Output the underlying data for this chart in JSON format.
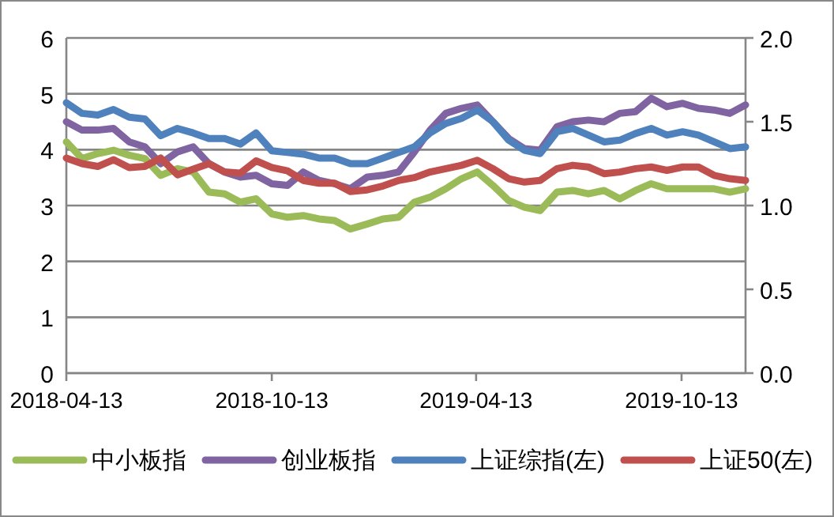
{
  "chart_data": {
    "type": "line",
    "x": [
      "2018-04-13",
      "2018-04-27",
      "2018-05-11",
      "2018-05-25",
      "2018-06-08",
      "2018-06-22",
      "2018-07-06",
      "2018-07-21",
      "2018-08-04",
      "2018-08-18",
      "2018-09-01",
      "2018-09-15",
      "2018-09-29",
      "2018-10-13",
      "2018-10-27",
      "2018-11-10",
      "2018-11-24",
      "2018-12-08",
      "2018-12-22",
      "2019-01-06",
      "2019-01-20",
      "2019-02-03",
      "2019-02-17",
      "2019-03-03",
      "2019-03-17",
      "2019-03-31",
      "2019-04-14",
      "2019-04-28",
      "2019-05-12",
      "2019-05-26",
      "2019-06-09",
      "2019-06-24",
      "2019-07-08",
      "2019-07-22",
      "2019-08-05",
      "2019-08-19",
      "2019-09-02",
      "2019-09-16",
      "2019-09-30",
      "2019-10-14",
      "2019-10-28",
      "2019-11-11",
      "2019-11-25",
      "2019-12-09"
    ],
    "series": [
      {
        "name": "中小板指",
        "color": "#9bbb59",
        "axis": "y2",
        "values": [
          1.38,
          1.28,
          1.31,
          1.33,
          1.3,
          1.28,
          1.18,
          1.22,
          1.2,
          1.08,
          1.07,
          1.02,
          1.04,
          0.95,
          0.93,
          0.94,
          0.92,
          0.91,
          0.86,
          0.89,
          0.92,
          0.93,
          1.02,
          1.05,
          1.1,
          1.16,
          1.2,
          1.12,
          1.03,
          0.99,
          0.97,
          1.08,
          1.09,
          1.07,
          1.09,
          1.04,
          1.09,
          1.13,
          1.1,
          1.1,
          1.1,
          1.1,
          1.08,
          1.1
        ]
      },
      {
        "name": "创业板指",
        "color": "#8064a2",
        "axis": "y2",
        "values": [
          1.5,
          1.45,
          1.45,
          1.46,
          1.38,
          1.35,
          1.25,
          1.32,
          1.35,
          1.25,
          1.2,
          1.17,
          1.18,
          1.13,
          1.12,
          1.2,
          1.15,
          1.13,
          1.1,
          1.17,
          1.18,
          1.2,
          1.32,
          1.45,
          1.55,
          1.58,
          1.6,
          1.5,
          1.4,
          1.34,
          1.33,
          1.47,
          1.5,
          1.51,
          1.5,
          1.55,
          1.56,
          1.64,
          1.59,
          1.61,
          1.58,
          1.57,
          1.55,
          1.6
        ]
      },
      {
        "name": "上证综指(左)",
        "color": "#4f81bd",
        "values": [
          4.84,
          4.65,
          4.62,
          4.72,
          4.58,
          4.55,
          4.25,
          4.38,
          4.3,
          4.2,
          4.2,
          4.1,
          4.3,
          3.98,
          3.95,
          3.92,
          3.85,
          3.85,
          3.75,
          3.75,
          3.85,
          3.95,
          4.05,
          4.3,
          4.47,
          4.56,
          4.71,
          4.5,
          4.17,
          3.99,
          3.93,
          4.32,
          4.38,
          4.26,
          4.14,
          4.17,
          4.29,
          4.38,
          4.26,
          4.32,
          4.26,
          4.14,
          4.02,
          4.05
        ]
      },
      {
        "name": "上证50(左)",
        "color": "#c0504d",
        "values": [
          3.85,
          3.75,
          3.7,
          3.82,
          3.68,
          3.7,
          3.85,
          3.55,
          3.65,
          3.75,
          3.6,
          3.58,
          3.8,
          3.68,
          3.62,
          3.45,
          3.4,
          3.4,
          3.25,
          3.28,
          3.35,
          3.45,
          3.5,
          3.6,
          3.66,
          3.72,
          3.81,
          3.66,
          3.48,
          3.42,
          3.45,
          3.66,
          3.72,
          3.69,
          3.57,
          3.6,
          3.66,
          3.69,
          3.63,
          3.69,
          3.69,
          3.54,
          3.48,
          3.45
        ]
      }
    ],
    "xlim": [
      "2018-04-13",
      "2019-12-09"
    ],
    "xticks": [
      "2018-04-13",
      "2018-10-13",
      "2019-04-13",
      "2019-10-13"
    ],
    "ylim": [
      0,
      6
    ],
    "yticks": [
      0,
      1,
      2,
      3,
      4,
      5,
      6
    ],
    "y2lim": [
      0,
      2
    ],
    "y2ticks": [
      {
        "value": 0,
        "label": "0.0"
      },
      {
        "value": 0.5,
        "label": "0.5"
      },
      {
        "value": 1,
        "label": "1.0"
      },
      {
        "value": 1.5,
        "label": "1.5"
      },
      {
        "value": 2,
        "label": "2.0"
      }
    ],
    "grid": "y",
    "legend": "bottom",
    "line_style": "solid",
    "marker": "none"
  }
}
